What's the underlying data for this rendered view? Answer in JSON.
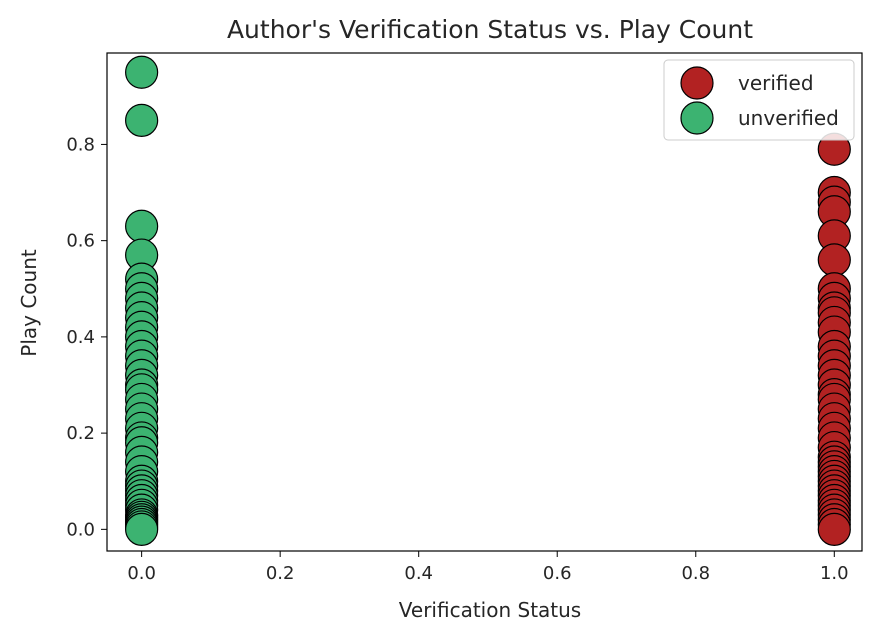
{
  "chart_data": {
    "type": "scatter",
    "title": "Author's Verification Status vs. Play Count",
    "xlabel": "Verification Status",
    "ylabel": "Play Count",
    "xlim": [
      -0.05,
      1.04
    ],
    "ylim": [
      -0.045,
      0.99
    ],
    "x_ticks": [
      0.0,
      0.2,
      0.4,
      0.6,
      0.8,
      1.0
    ],
    "x_tick_labels": [
      "0.0",
      "0.2",
      "0.4",
      "0.6",
      "0.8",
      "1.0"
    ],
    "y_ticks": [
      0.0,
      0.2,
      0.4,
      0.6,
      0.8
    ],
    "y_tick_labels": [
      "0.0",
      "0.2",
      "0.4",
      "0.6",
      "0.8"
    ],
    "grid": false,
    "legend_position": "top-right",
    "marker_edge_color": "#000000",
    "series": [
      {
        "name": "verified",
        "color": "#b22222",
        "x": [
          1,
          1,
          1,
          1,
          1,
          1,
          1,
          1,
          1,
          1,
          1,
          1,
          1,
          1,
          1,
          1,
          1,
          1,
          1,
          1,
          1,
          1,
          1,
          1,
          1,
          1,
          1,
          1,
          1,
          1,
          1,
          1,
          1,
          1,
          1,
          1,
          1,
          1,
          1,
          1
        ],
        "y": [
          0.79,
          0.7,
          0.68,
          0.66,
          0.61,
          0.56,
          0.5,
          0.48,
          0.46,
          0.45,
          0.43,
          0.41,
          0.38,
          0.36,
          0.34,
          0.32,
          0.3,
          0.28,
          0.27,
          0.25,
          0.23,
          0.21,
          0.19,
          0.17,
          0.15,
          0.14,
          0.13,
          0.12,
          0.11,
          0.1,
          0.09,
          0.08,
          0.07,
          0.06,
          0.05,
          0.04,
          0.03,
          0.02,
          0.01,
          0.0
        ]
      },
      {
        "name": "unverified",
        "color": "#3cb371",
        "x": [
          0,
          0,
          0,
          0,
          0,
          0,
          0,
          0,
          0,
          0,
          0,
          0,
          0,
          0,
          0,
          0,
          0,
          0,
          0,
          0,
          0,
          0,
          0,
          0,
          0,
          0,
          0,
          0,
          0,
          0,
          0,
          0,
          0,
          0,
          0,
          0,
          0,
          0,
          0,
          0
        ],
        "y": [
          0.95,
          0.85,
          0.63,
          0.57,
          0.52,
          0.5,
          0.48,
          0.46,
          0.44,
          0.42,
          0.4,
          0.38,
          0.36,
          0.34,
          0.32,
          0.3,
          0.29,
          0.27,
          0.25,
          0.23,
          0.21,
          0.19,
          0.18,
          0.16,
          0.14,
          0.12,
          0.1,
          0.09,
          0.08,
          0.07,
          0.06,
          0.05,
          0.04,
          0.03,
          0.025,
          0.02,
          0.015,
          0.01,
          0.005,
          0.0
        ]
      }
    ]
  }
}
